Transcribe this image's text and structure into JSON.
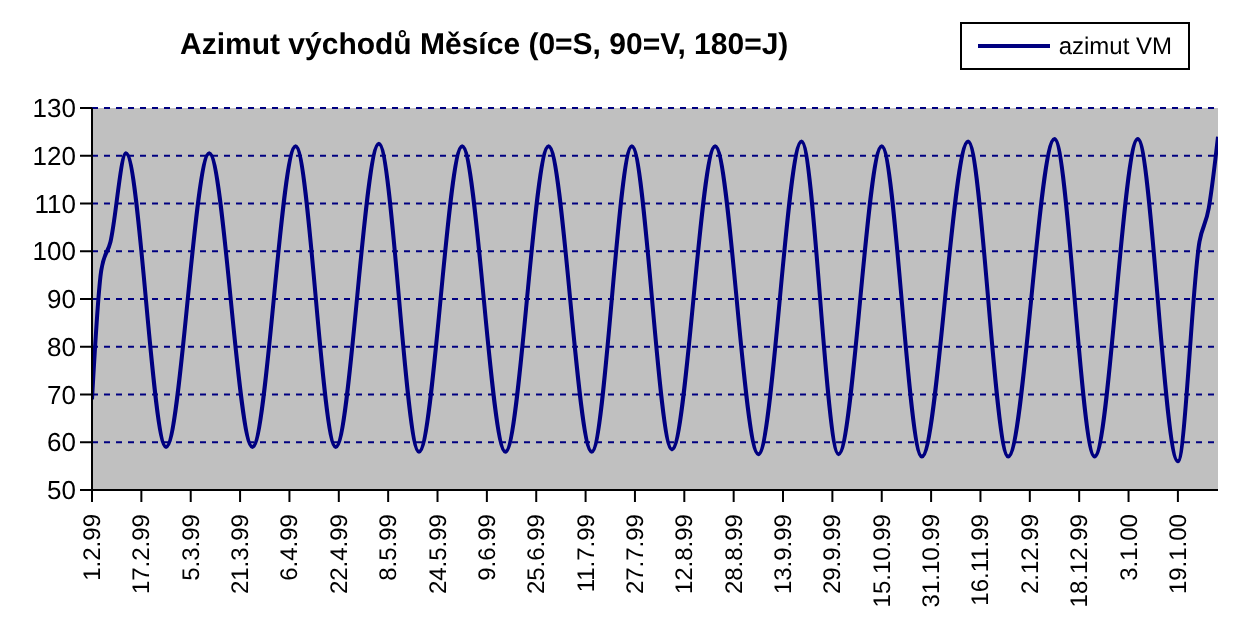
{
  "chart_data": {
    "type": "line",
    "title": "Azimut východů Měsíce (0=S, 90=V, 180=J)",
    "x": [
      "1999-02-01",
      "1999-02-04",
      "1999-02-07",
      "1999-02-12",
      "1999-02-25",
      "1999-03-11",
      "1999-03-25",
      "1999-04-08",
      "1999-04-21",
      "1999-05-05",
      "1999-05-18",
      "1999-06-01",
      "1999-06-15",
      "1999-06-29",
      "1999-07-13",
      "1999-07-26",
      "1999-08-08",
      "1999-08-22",
      "1999-09-05",
      "1999-09-19",
      "1999-10-01",
      "1999-10-15",
      "1999-10-28",
      "1999-11-12",
      "1999-11-25",
      "1999-12-10",
      "1999-12-23",
      "2000-01-06",
      "2000-01-19",
      "2000-01-26",
      "2000-01-29",
      "2000-02-01"
    ],
    "series": [
      {
        "name": "azimut VM",
        "color": "#000080",
        "values": [
          69,
          96,
          102,
          120.5,
          59,
          120.5,
          59,
          122,
          59,
          122.5,
          58,
          122,
          58,
          122,
          58,
          122,
          58.5,
          122,
          57.5,
          123,
          57.5,
          122,
          57,
          123,
          57,
          123.5,
          57,
          123.5,
          56,
          102,
          109,
          124
        ]
      }
    ],
    "xlim": [
      "1999-02-01",
      "2000-02-01"
    ],
    "xticks": [
      {
        "value": "1999-02-01",
        "label": "1.2.99"
      },
      {
        "value": "1999-02-17",
        "label": "17.2.99"
      },
      {
        "value": "1999-03-05",
        "label": "5.3.99"
      },
      {
        "value": "1999-03-21",
        "label": "21.3.99"
      },
      {
        "value": "1999-04-06",
        "label": "6.4.99"
      },
      {
        "value": "1999-04-22",
        "label": "22.4.99"
      },
      {
        "value": "1999-05-08",
        "label": "8.5.99"
      },
      {
        "value": "1999-05-24",
        "label": "24.5.99"
      },
      {
        "value": "1999-06-09",
        "label": "9.6.99"
      },
      {
        "value": "1999-06-25",
        "label": "25.6.99"
      },
      {
        "value": "1999-07-11",
        "label": "11.7.99"
      },
      {
        "value": "1999-07-27",
        "label": "27.7.99"
      },
      {
        "value": "1999-08-12",
        "label": "12.8.99"
      },
      {
        "value": "1999-08-28",
        "label": "28.8.99"
      },
      {
        "value": "1999-09-13",
        "label": "13.9.99"
      },
      {
        "value": "1999-09-29",
        "label": "29.9.99"
      },
      {
        "value": "1999-10-15",
        "label": "15.10.99"
      },
      {
        "value": "1999-10-31",
        "label": "31.10.99"
      },
      {
        "value": "1999-11-16",
        "label": "16.11.99"
      },
      {
        "value": "1999-12-02",
        "label": "2.12.99"
      },
      {
        "value": "1999-12-18",
        "label": "18.12.99"
      },
      {
        "value": "2000-01-03",
        "label": "3.1.00"
      },
      {
        "value": "2000-01-19",
        "label": "19.1.00"
      }
    ],
    "ylim": [
      50,
      130
    ],
    "yticks": [
      50,
      60,
      70,
      80,
      90,
      100,
      110,
      120,
      130
    ],
    "grid": "y",
    "legend": "top right",
    "marker": "none",
    "line_style": "solid"
  }
}
